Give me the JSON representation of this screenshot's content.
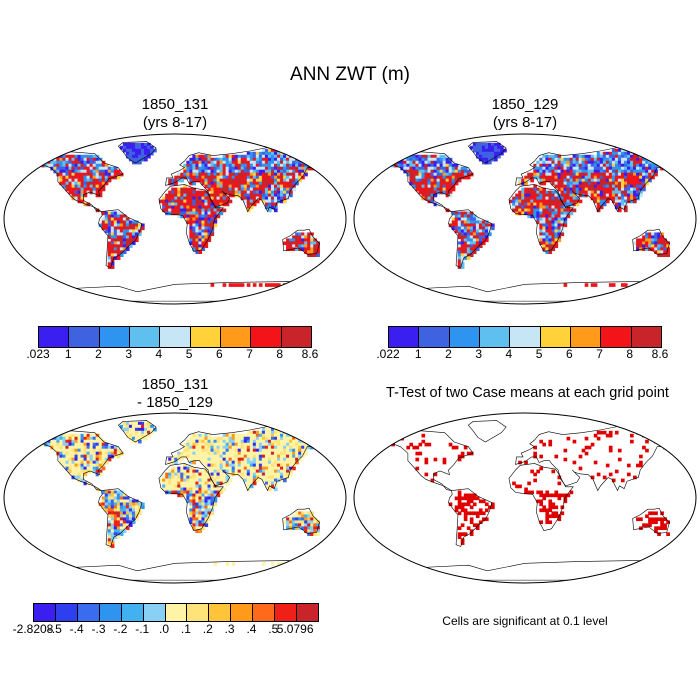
{
  "title": "ANN ZWT (m)",
  "panels": [
    {
      "title": "1850_131\n(yrs 8-17)"
    },
    {
      "title": "1850_129\n(yrs 8-17)"
    },
    {
      "title": "1850_131\n- 1850_129"
    },
    {
      "title": "T-Test of two Case means at each grid point"
    }
  ],
  "colorbar_top_left": {
    "labels": [
      ".023",
      "1",
      "2",
      "3",
      "4",
      "5",
      "6",
      "7",
      "8",
      "8.6"
    ],
    "colors": [
      "#3a1ff0",
      "#3f63e0",
      "#2f93f0",
      "#5fbfef",
      "#c6e6f5",
      "#ffd23a",
      "#ff9a1a",
      "#f3141a",
      "#c8242a"
    ]
  },
  "colorbar_top_right": {
    "labels": [
      ".022",
      "1",
      "2",
      "3",
      "4",
      "5",
      "6",
      "7",
      "8",
      "8.6"
    ],
    "colors": [
      "#3a1ff0",
      "#3f63e0",
      "#2f93f0",
      "#5fbfef",
      "#c6e6f5",
      "#ffd23a",
      "#ff9a1a",
      "#f3141a",
      "#c8242a"
    ]
  },
  "colorbar_diff": {
    "labels": [
      "-2.8208",
      "-.5",
      "-.4",
      "-.3",
      "-.2",
      "-.1",
      ".0",
      ".1",
      ".2",
      ".3",
      ".4",
      ".5",
      "5.0796"
    ],
    "colors": [
      "#3a1ff0",
      "#2e3ff0",
      "#3a6cf0",
      "#2f93f0",
      "#41b1f0",
      "#88d0f4",
      "#fff3a6",
      "#ffe27a",
      "#ffc43a",
      "#ff9a1a",
      "#ff6a1a",
      "#f02018",
      "#c8242a"
    ]
  },
  "ttest_note": "Cells are significant at 0.1 level",
  "palette": {
    "land_warm": "#e0241c",
    "land_cool": "#3a3ae8",
    "diff_base": "#fff3a6",
    "sig": "#e00000"
  }
}
